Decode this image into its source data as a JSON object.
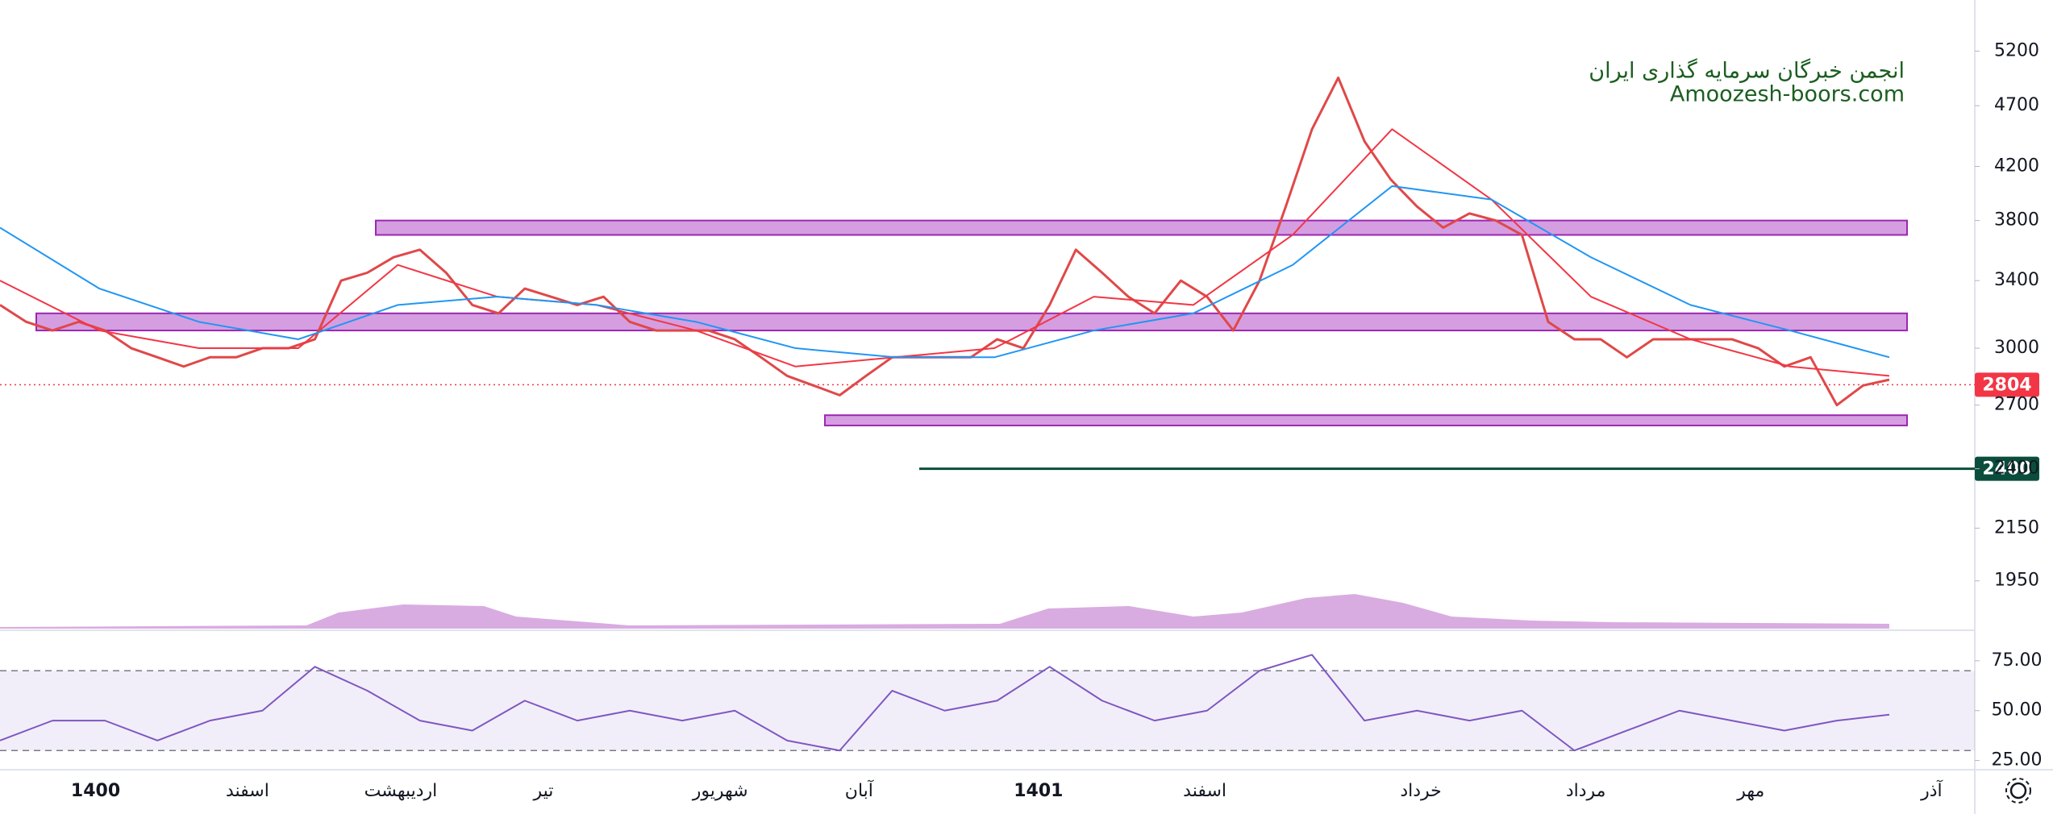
{
  "watermark": {
    "line1": "انجمن خبرگان سرمایه گذاری ایران",
    "line2": "Amoozesh-boors.com"
  },
  "time_labels": [
    "1400",
    "اسفند",
    "اردیبهشت",
    "تیر",
    "شهریور",
    "آبان",
    "1401",
    "اسفند",
    "خرداد",
    "مرداد",
    "مهر",
    "آذر"
  ],
  "chart_data": [
    {
      "type": "line",
      "log_scale": true,
      "ylim": [
        1785,
        5716
      ],
      "yticks": [
        5200,
        4700,
        4200,
        3800,
        3400,
        3000,
        2700,
        2400,
        2150,
        1950
      ],
      "grid": false,
      "series": [
        {
          "color": "#e04848",
          "values": [
            3250,
            3150,
            3100,
            3150,
            3100,
            3000,
            2950,
            2900,
            2950,
            2950,
            3000,
            3000,
            3050,
            3400,
            3450,
            3550,
            3600,
            3450,
            3250,
            3200,
            3350,
            3300,
            3250,
            3300,
            3150,
            3100,
            3100,
            3100,
            3050,
            2950,
            2850,
            2800,
            2750,
            2850,
            2950,
            2950,
            2950,
            2950,
            3050,
            3000,
            3250,
            3600,
            3450,
            3300,
            3200,
            3400,
            3300,
            3100,
            3400,
            3900,
            4500,
            4950,
            4400,
            4100,
            3900,
            3750,
            3850,
            3800,
            3700,
            3150,
            3050,
            3050,
            2950,
            3050,
            3050,
            3050,
            3050,
            3000,
            2900,
            2950,
            2700,
            2800,
            2830
          ]
        },
        {
          "color": "#f23645",
          "values": [
            3400,
            3100,
            3000,
            3000,
            3500,
            3300,
            3250,
            3100,
            2900,
            2950,
            3000,
            3300,
            3250,
            3700,
            4500,
            3950,
            3300,
            3050,
            2900,
            2850
          ]
        },
        {
          "color": "#2196f3",
          "values": [
            3750,
            3350,
            3150,
            3050,
            3250,
            3300,
            3250,
            3150,
            3000,
            2950,
            2950,
            3100,
            3200,
            3500,
            4050,
            3950,
            3550,
            3250,
            3100,
            2950
          ]
        }
      ],
      "zones": [
        {
          "low": 3700,
          "high": 3800
        },
        {
          "low": 3100,
          "high": 3200
        },
        {
          "low": 2600,
          "high": 2650
        }
      ],
      "zone_color": "#c77dd7",
      "level": 2400,
      "level_color": "#0b4d3c",
      "last_price": 2804,
      "last_price_color": "#f23645"
    },
    {
      "type": "line",
      "ylim": [
        20.4,
        89.5
      ],
      "yticks": [
        {
          "value": 75,
          "label": "75.00"
        },
        {
          "value": 50,
          "label": "50.00"
        },
        {
          "value": 25,
          "label": "25.00"
        }
      ],
      "bands": [
        30,
        70
      ],
      "series": [
        {
          "color": "#7e57c2",
          "values": [
            35,
            45,
            45,
            35,
            45,
            50,
            72,
            60,
            45,
            40,
            55,
            45,
            50,
            45,
            50,
            35,
            30,
            60,
            50,
            55,
            72,
            55,
            45,
            50,
            70,
            78,
            45,
            50,
            45,
            50,
            30,
            40,
            50,
            45,
            40,
            45,
            48
          ]
        }
      ]
    }
  ]
}
